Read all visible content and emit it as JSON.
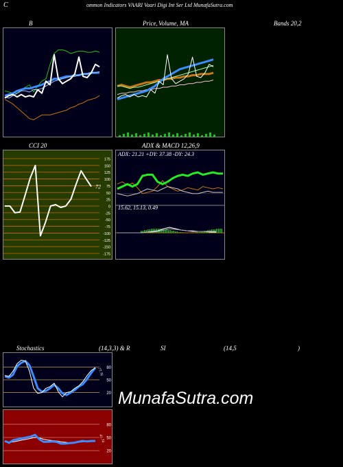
{
  "header": {
    "c_letter": "C",
    "text": "ommon  Indicators VAARI Vaari  Digi  Int Ser Ltd MunafaSutra.com"
  },
  "titles": {
    "b": "B",
    "price": "Price,",
    "volume": "Volume, MA",
    "bands": "Bands 20,2",
    "cci": "CCI 20",
    "adx_macd": "ADX  & MACD 12,26,9",
    "stoch": "Stochastics",
    "stoch_params": "(14,3,3) & R",
    "rsi": "SI",
    "rsi_params": "(14,5",
    "rsi_close": ")"
  },
  "cci": {
    "levels": [
      "175",
      "150",
      "125",
      "100",
      "75",
      "50",
      "25",
      "0",
      "-25",
      "-50",
      "-75",
      "-100",
      "-125",
      "-150",
      "-175"
    ],
    "current": "72"
  },
  "adx": {
    "label": "ADX: 21.21  +DY: 37.38  -DY: 24.3"
  },
  "macd": {
    "label": "15.62,  15.13,  0.49"
  },
  "stoch": {
    "levels": [
      "80",
      "50",
      "20"
    ],
    "current": "77.76"
  },
  "rsi": {
    "levels": [
      "80",
      "50",
      "20"
    ],
    "current": "41.74"
  },
  "watermark": "MunafaSutra.com",
  "colors": {
    "bollinger_bg": "#00001a",
    "price_bg": "#002200",
    "cci_bg": "#263b00",
    "adx_bg": "#00001a",
    "stoch_bg": "#00001a",
    "rsi_bg": "#8b0000",
    "band_green": "#19c419",
    "band_orange": "#c87514",
    "ma_blue": "#3c8cff",
    "line_white": "#ffffff",
    "level_orange": "#c9a057"
  },
  "chart_data": [
    {
      "type": "line",
      "title": "Bollinger Bands 20,2",
      "series": [
        {
          "values": [
            48,
            47,
            46,
            46,
            49,
            51,
            53,
            47,
            52,
            56,
            58,
            70,
            79,
            82,
            82,
            81,
            79,
            80,
            81,
            81,
            80,
            80,
            81,
            80
          ]
        },
        {
          "values": [
            44,
            45,
            46,
            48,
            49,
            50,
            50,
            51,
            52,
            53,
            55,
            56,
            58,
            58,
            59,
            60,
            60,
            61,
            61,
            62,
            62,
            63,
            63,
            63
          ]
        },
        {
          "values": [
            43,
            42,
            44,
            46,
            48,
            48,
            47,
            49,
            49,
            50,
            52,
            54,
            56,
            57,
            58,
            59,
            60,
            60,
            61,
            62,
            62,
            63,
            63,
            64
          ]
        },
        {
          "values": [
            41,
            39,
            37,
            34,
            31,
            28,
            25,
            24,
            26,
            28,
            28,
            28,
            29,
            30,
            31,
            32,
            34,
            35,
            37,
            38,
            40,
            41,
            42,
            44
          ]
        },
        {
          "values": [
            42,
            44,
            45,
            43,
            45,
            43,
            44,
            43,
            49,
            46,
            56,
            53,
            78,
            58,
            54,
            56,
            58,
            62,
            76,
            60,
            59,
            63,
            70,
            68
          ]
        }
      ]
    },
    {
      "type": "line",
      "title": "Price, Volume, MA",
      "series": [
        {
          "values": [
            41,
            42,
            43,
            44,
            45,
            46,
            47,
            48,
            50,
            52,
            55,
            58,
            60,
            62,
            64,
            66,
            67,
            68,
            69,
            70,
            71,
            72,
            73,
            74
          ]
        },
        {
          "values": [
            52,
            52,
            51,
            50,
            51,
            51,
            52,
            53,
            54,
            55,
            56,
            57,
            58,
            59,
            60,
            61,
            62,
            63,
            64,
            65,
            66,
            67,
            68,
            69
          ]
        },
        {
          "values": [
            52,
            53,
            52,
            51,
            52,
            53,
            54,
            55,
            55,
            56,
            57,
            57,
            58,
            58,
            59,
            59,
            60,
            60,
            61,
            61,
            62,
            62,
            62,
            63
          ]
        },
        {
          "values": [
            45,
            46,
            46,
            47,
            47,
            48,
            48,
            49,
            49,
            50,
            50,
            51,
            51,
            52,
            52,
            53,
            53,
            54,
            54,
            55,
            55,
            56,
            56,
            57
          ]
        },
        {
          "values": [
            42,
            44,
            45,
            43,
            45,
            43,
            44,
            43,
            49,
            46,
            56,
            53,
            78,
            58,
            54,
            56,
            58,
            62,
            76,
            60,
            59,
            63,
            70,
            68
          ]
        }
      ]
    },
    {
      "type": "line",
      "title": "CCI 20",
      "ylim": [
        -175,
        175
      ],
      "series": [
        {
          "values": [
            0,
            0,
            -25,
            -22,
            40,
            104,
            150,
            -110,
            -60,
            0,
            5,
            -5,
            0,
            25,
            80,
            130,
            100,
            72
          ]
        }
      ]
    },
    {
      "type": "line",
      "title": "ADX & MACD 12,26,9",
      "series": [
        {
          "values": [
            20,
            19,
            18,
            19,
            20,
            22,
            24,
            23,
            22,
            24,
            26,
            25,
            24,
            22,
            21,
            20,
            20,
            21,
            22,
            21,
            21,
            21
          ]
        },
        {
          "values": [
            24,
            26,
            28,
            26,
            28,
            35,
            36,
            36,
            30,
            28,
            30,
            33,
            35,
            36,
            35,
            37,
            38,
            36,
            37,
            38,
            37,
            37
          ]
        },
        {
          "values": [
            28,
            30,
            27,
            29,
            25,
            20,
            21,
            22,
            26,
            31,
            26,
            24,
            22,
            23,
            25,
            24,
            23,
            26,
            25,
            24,
            25,
            24
          ]
        }
      ]
    },
    {
      "type": "line",
      "title": "Stochastics (14,3,3)",
      "ylim": [
        0,
        100
      ],
      "series": [
        {
          "values": [
            60,
            58,
            70,
            88,
            96,
            94,
            70,
            30,
            18,
            20,
            30,
            34,
            42,
            22,
            10,
            20,
            22,
            30,
            36,
            46,
            60,
            72,
            78
          ]
        },
        {
          "values": [
            58,
            55,
            62,
            82,
            90,
            94,
            84,
            58,
            30,
            22,
            24,
            30,
            38,
            30,
            18,
            14,
            20,
            26,
            34,
            40,
            52,
            66,
            78
          ]
        }
      ]
    },
    {
      "type": "line",
      "title": "RSI (14,5)",
      "ylim": [
        0,
        100
      ],
      "series": [
        {
          "values": [
            42,
            38,
            44,
            46,
            48,
            50,
            52,
            56,
            46,
            40,
            40,
            41,
            40,
            36,
            36,
            37,
            38,
            40,
            42,
            41,
            42,
            42
          ]
        },
        {
          "values": [
            40,
            39,
            40,
            42,
            44,
            46,
            48,
            50,
            49,
            46,
            44,
            43,
            42,
            40,
            39,
            38,
            38,
            39,
            40,
            41,
            41,
            42
          ]
        }
      ]
    }
  ]
}
